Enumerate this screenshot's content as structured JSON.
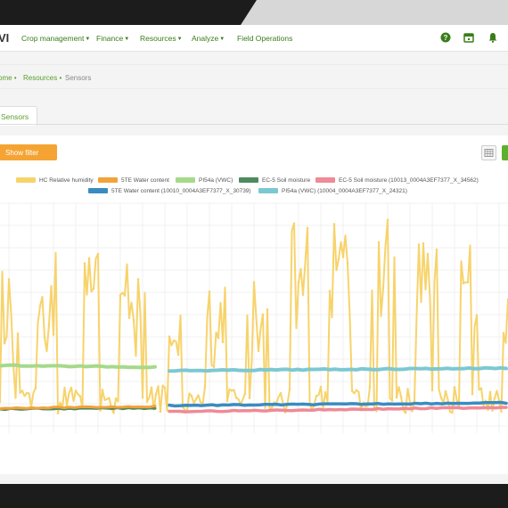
{
  "navbar": {
    "brand": "VI",
    "items": [
      {
        "label": "Crop management"
      },
      {
        "label": "Finance"
      },
      {
        "label": "Resources"
      },
      {
        "label": "Analyze"
      },
      {
        "label": "Field Operations"
      }
    ],
    "icons": [
      "help-icon",
      "calendar-icon",
      "bell-icon"
    ]
  },
  "breadcrumb": {
    "home": "ome •",
    "resources": "Resources •",
    "current": "Sensors"
  },
  "tabs": [
    {
      "label": "Sensors",
      "active": true
    }
  ],
  "toolbar": {
    "filter_label": "Show filter"
  },
  "colors": {
    "accent": "#5aa02c",
    "filter_button": "#f5a433",
    "hc_humidity": "#f7d36b",
    "te_water": "#f2a23a",
    "pi54a": "#a6d98a",
    "ec5": "#4e8a5e",
    "ec5_2": "#ef8a96",
    "te_water_2": "#3a8cc0",
    "pi54a_2": "#7cc8d2"
  },
  "chart_data": {
    "type": "line",
    "title": "",
    "xlabel": "",
    "ylabel": "",
    "grid": true,
    "legend_position": "top",
    "series": [
      {
        "name": "HC Relative humidity",
        "color": "#f7d36b",
        "description_values": "oscillating, mostly between lower and upper band"
      },
      {
        "name": "5TE Water content",
        "color": "#f2a23a"
      },
      {
        "name": "PI54a (VWC)",
        "color": "#a6d98a"
      },
      {
        "name": "EC-5 Soil moisture",
        "color": "#4e8a5e"
      },
      {
        "name": "EC-5 Soil moisture (10013_0004A3EF7377_X_34562)",
        "color": "#ef8a96"
      },
      {
        "name": "5TE Water content (10010_0004A3EF7377_X_30739)",
        "color": "#3a8cc0"
      },
      {
        "name": "PI54a (VWC) (10004_0004A3EF7377_X_24321)",
        "color": "#7cc8d2"
      }
    ]
  }
}
